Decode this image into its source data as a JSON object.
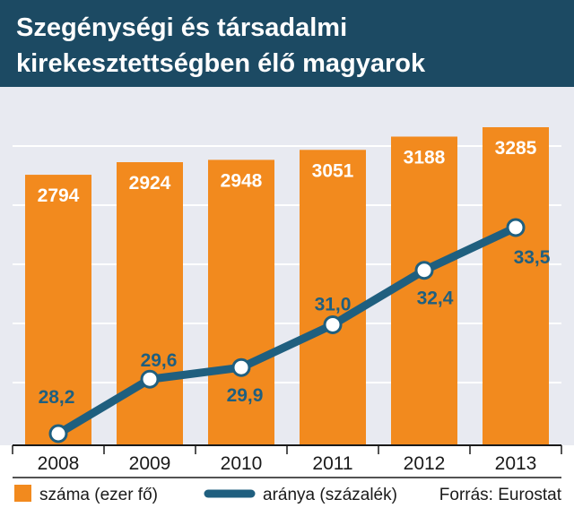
{
  "chart_data": {
    "type": "bar+line",
    "title": "Szegénységi és társadalmi kirekesztettségben élő magyarok",
    "title_lines": [
      "Szegénységi és társadalmi",
      "kirekesztettségben élő magyarok"
    ],
    "categories": [
      "2008",
      "2009",
      "2010",
      "2011",
      "2012",
      "2013"
    ],
    "series": [
      {
        "name": "száma (ezer fő)",
        "type": "bar",
        "values": [
          2794,
          2924,
          2948,
          3051,
          3188,
          3285
        ],
        "labels": [
          "2794",
          "2924",
          "2948",
          "3051",
          "3188",
          "3285"
        ]
      },
      {
        "name": "aránya (százalék)",
        "type": "line",
        "values": [
          28.2,
          29.6,
          29.9,
          31.0,
          32.4,
          33.5
        ],
        "labels": [
          "28,2",
          "29,6",
          "29,9",
          "31,0",
          "32,4",
          "33,5"
        ]
      }
    ],
    "source": "Forrás: Eurostat",
    "legend_position": "bottom",
    "grid": true,
    "colors": {
      "bar": "#f28a1e",
      "line": "#1f5f7f",
      "title_band": "#1c4a63",
      "chart_bg": "#e8eaf1",
      "grid": "#ffffff",
      "text": "#1a1a1a",
      "title_text": "#ffffff"
    }
  }
}
